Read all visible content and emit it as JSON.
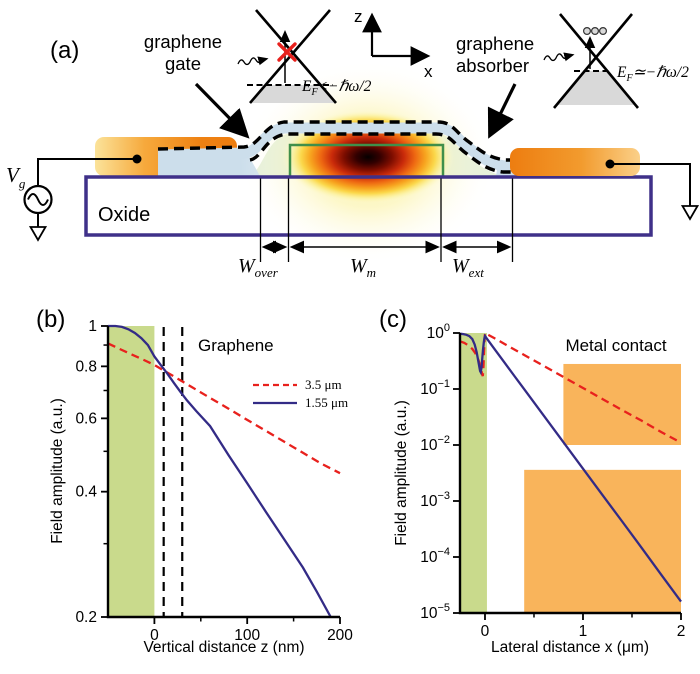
{
  "panel_a": {
    "label": "(a)",
    "gate_label": [
      "graphene",
      "gate"
    ],
    "absorber_label": [
      "graphene",
      "absorber"
    ],
    "coord": {
      "z": "z",
      "x": "x"
    },
    "ef_left": {
      "base": "E",
      "sub": "F",
      "rest": "<−ℏω/2"
    },
    "ef_right": {
      "base": "E",
      "sub": "F",
      "rest": "≃−ℏω/2"
    },
    "oxide": "Oxide",
    "gate_voltage": {
      "base": "V",
      "sub": "g"
    },
    "dims": {
      "over": {
        "base": "W",
        "sub": "over"
      },
      "m": {
        "base": "W",
        "sub": "m"
      },
      "ext": {
        "base": "W",
        "sub": "ext"
      }
    }
  },
  "colors": {
    "curve_red": "#e8211d",
    "curve_blue": "#332b86",
    "green_region": "#c9da8c",
    "metal_box_orange": "#f9b45b",
    "contact_orange": "#ee8112",
    "oxide_border": "#3f3089",
    "waveguide_border": "#3f8f4a",
    "graphene_ribbon": "#ccdeeb",
    "cone_gray": "#d9d9d9"
  },
  "chart_data": [
    {
      "id": "b",
      "type": "line",
      "panel_label": "(b)",
      "xlabel": "Vertical distance z (nm)",
      "ylabel": "Field amplitude (a.u.)",
      "xlim": [
        -50,
        200
      ],
      "ylim": [
        0.2,
        1
      ],
      "yscale": "log",
      "ytick_format": "plain",
      "xticks_major": [
        0,
        100,
        200
      ],
      "xticks_minor": [
        50,
        150
      ],
      "yticks_major": [
        1,
        0.8,
        0.6,
        0.4,
        0.2
      ],
      "yticks_minor": [
        0.9,
        0.7,
        0.5,
        0.3
      ],
      "annotation": "Graphene",
      "shaded_region": {
        "x": [
          -50,
          0
        ],
        "color": "#c9da8c"
      },
      "dashed_vlines": [
        10,
        30
      ],
      "legend": [
        {
          "name": "3.5 μm",
          "style": "dashed",
          "color": "#e8211d"
        },
        {
          "name": "1.55 μm",
          "style": "solid",
          "color": "#332b86"
        }
      ],
      "series": [
        {
          "name": "3.5 μm",
          "style": "dashed",
          "color": "#e8211d",
          "points": [
            [
              -50,
              0.908
            ],
            [
              -38,
              0.882
            ],
            [
              -25,
              0.855
            ],
            [
              -12,
              0.83
            ],
            [
              0,
              0.806
            ],
            [
              20,
              0.759
            ],
            [
              40,
              0.714
            ],
            [
              60,
              0.672
            ],
            [
              80,
              0.633
            ],
            [
              100,
              0.595
            ],
            [
              120,
              0.56
            ],
            [
              140,
              0.527
            ],
            [
              160,
              0.496
            ],
            [
              180,
              0.467
            ],
            [
              200,
              0.443
            ]
          ]
        },
        {
          "name": "1.55 μm",
          "style": "solid",
          "color": "#332b86",
          "points": [
            [
              -50,
              1.0
            ],
            [
              -42,
              1.0
            ],
            [
              -35,
              0.995
            ],
            [
              -28,
              0.982
            ],
            [
              -21,
              0.962
            ],
            [
              -14,
              0.935
            ],
            [
              -7,
              0.9
            ],
            [
              0,
              0.845
            ],
            [
              7,
              0.805
            ],
            [
              14,
              0.768
            ],
            [
              21,
              0.73
            ],
            [
              28,
              0.695
            ],
            [
              35,
              0.663
            ],
            [
              45,
              0.625
            ],
            [
              60,
              0.575
            ],
            [
              80,
              0.489
            ],
            [
              100,
              0.419
            ],
            [
              120,
              0.358
            ],
            [
              140,
              0.307
            ],
            [
              160,
              0.263
            ],
            [
              175,
              0.23
            ],
            [
              190,
              0.2
            ]
          ]
        }
      ]
    },
    {
      "id": "c",
      "type": "line",
      "panel_label": "(c)",
      "xlabel": "Lateral distance x (μm)",
      "ylabel": "Field amplitude (a.u.)",
      "xlim": [
        -0.255,
        2
      ],
      "ylim": [
        1e-05,
        1
      ],
      "yscale": "log",
      "ytick_format": "power",
      "xticks_major": [
        0,
        1,
        2
      ],
      "xticks_minor": [
        0.5,
        1.5
      ],
      "yticks_major_exp": [
        0,
        -1,
        -2,
        -3,
        -4,
        -5
      ],
      "yticks_minor": [],
      "annotation": "Metal contact",
      "shaded_region": {
        "x": [
          -0.255,
          0.02
        ],
        "color": "#c9da8c"
      },
      "metal_boxes": [
        {
          "x": [
            0.4,
            2.0
          ],
          "y": [
            1e-05,
            0.0036
          ],
          "color": "#f9b45b"
        },
        {
          "x": [
            0.8,
            2.0
          ],
          "y": [
            0.01,
            0.28
          ],
          "color": "#f9b45b"
        }
      ],
      "series": [
        {
          "name": "3.5 μm",
          "style": "dashed",
          "color": "#e8211d",
          "points": [
            [
              -0.255,
              0.71
            ],
            [
              -0.21,
              0.665
            ],
            [
              -0.17,
              0.6
            ],
            [
              -0.13,
              0.52
            ],
            [
              -0.1,
              0.44
            ],
            [
              -0.075,
              0.36
            ],
            [
              -0.055,
              0.285
            ],
            [
              -0.04,
              0.225
            ],
            [
              -0.03,
              0.185
            ],
            [
              -0.022,
              0.17
            ],
            [
              -0.015,
              0.26
            ],
            [
              -0.009,
              0.5
            ],
            [
              -0.004,
              0.78
            ],
            [
              0,
              1.0
            ],
            [
              0.1,
              0.8
            ],
            [
              0.2,
              0.637
            ],
            [
              0.4,
              0.405
            ],
            [
              0.6,
              0.258
            ],
            [
              0.8,
              0.164
            ],
            [
              1.0,
              0.104
            ],
            [
              1.2,
              0.066
            ],
            [
              1.4,
              0.042
            ],
            [
              1.6,
              0.027
            ],
            [
              1.8,
              0.017
            ],
            [
              2.0,
              0.011
            ]
          ]
        },
        {
          "name": "1.55 μm",
          "style": "solid",
          "color": "#332b86",
          "points": [
            [
              -0.255,
              0.97
            ],
            [
              -0.22,
              0.955
            ],
            [
              -0.19,
              0.93
            ],
            [
              -0.16,
              0.88
            ],
            [
              -0.13,
              0.78
            ],
            [
              -0.105,
              0.62
            ],
            [
              -0.085,
              0.45
            ],
            [
              -0.07,
              0.33
            ],
            [
              -0.058,
              0.25
            ],
            [
              -0.05,
              0.21
            ],
            [
              -0.044,
              0.2
            ],
            [
              -0.036,
              0.24
            ],
            [
              -0.028,
              0.34
            ],
            [
              -0.02,
              0.5
            ],
            [
              -0.012,
              0.68
            ],
            [
              -0.005,
              0.82
            ],
            [
              0,
              0.88
            ],
            [
              0.1,
              0.51
            ],
            [
              0.2,
              0.295
            ],
            [
              0.3,
              0.171
            ],
            [
              0.4,
              0.099
            ],
            [
              0.6,
              0.0333
            ],
            [
              0.8,
              0.0112
            ],
            [
              1.0,
              0.00377
            ],
            [
              1.2,
              0.00127
            ],
            [
              1.4,
              0.00043
            ],
            [
              1.6,
              0.000144
            ],
            [
              1.8,
              4.8e-05
            ],
            [
              2.0,
              1.6e-05
            ]
          ]
        }
      ]
    }
  ]
}
